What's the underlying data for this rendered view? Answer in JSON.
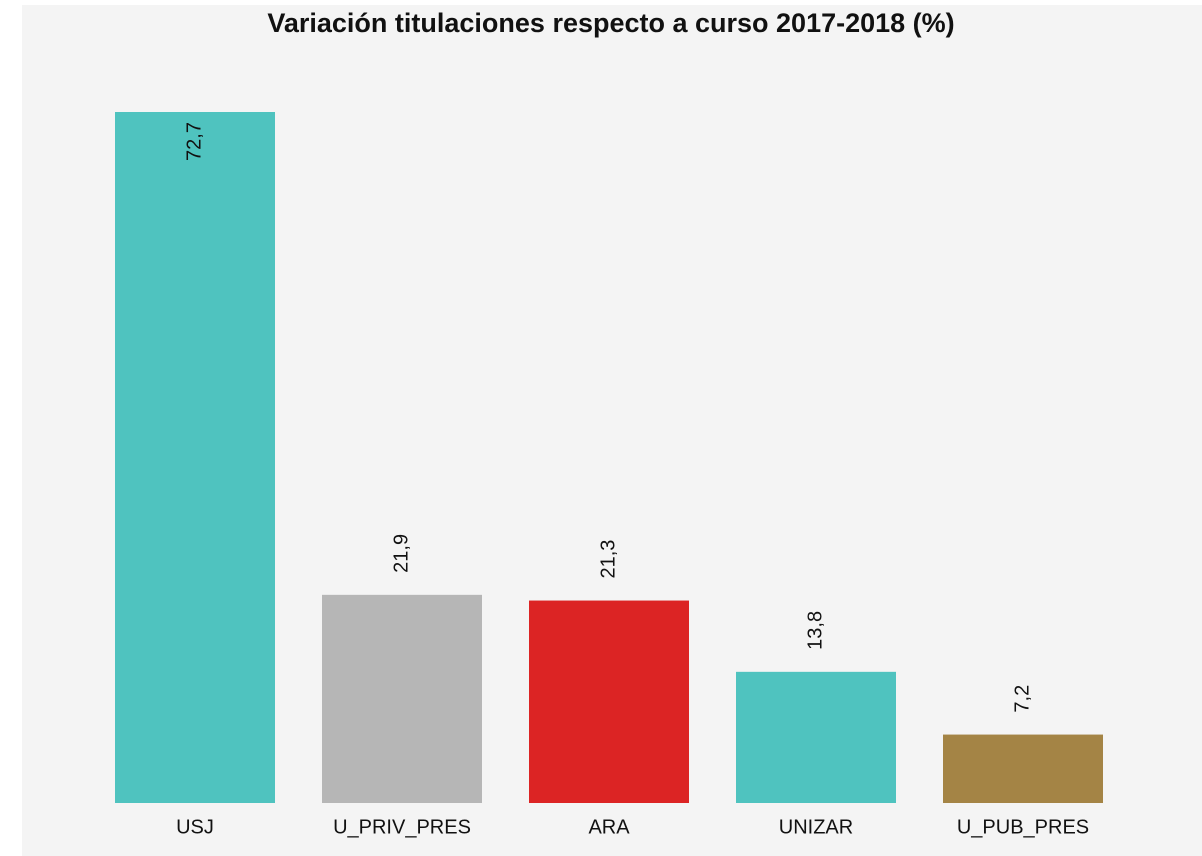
{
  "chart_data": {
    "type": "bar",
    "title": "Variación titulaciones respecto a curso 2017-2018 (%)",
    "categories": [
      "USJ",
      "U_PRIV_PRES",
      "ARA",
      "UNIZAR",
      "U_PUB_PRES"
    ],
    "values": [
      72.7,
      21.9,
      21.3,
      13.8,
      7.2
    ],
    "value_labels": [
      "72,7",
      "21,9",
      "21,3",
      "13,8",
      "7,2"
    ],
    "colors": [
      "#4fc3bf",
      "#b6b6b6",
      "#dc2424",
      "#4fc3bf",
      "#a48445"
    ]
  }
}
